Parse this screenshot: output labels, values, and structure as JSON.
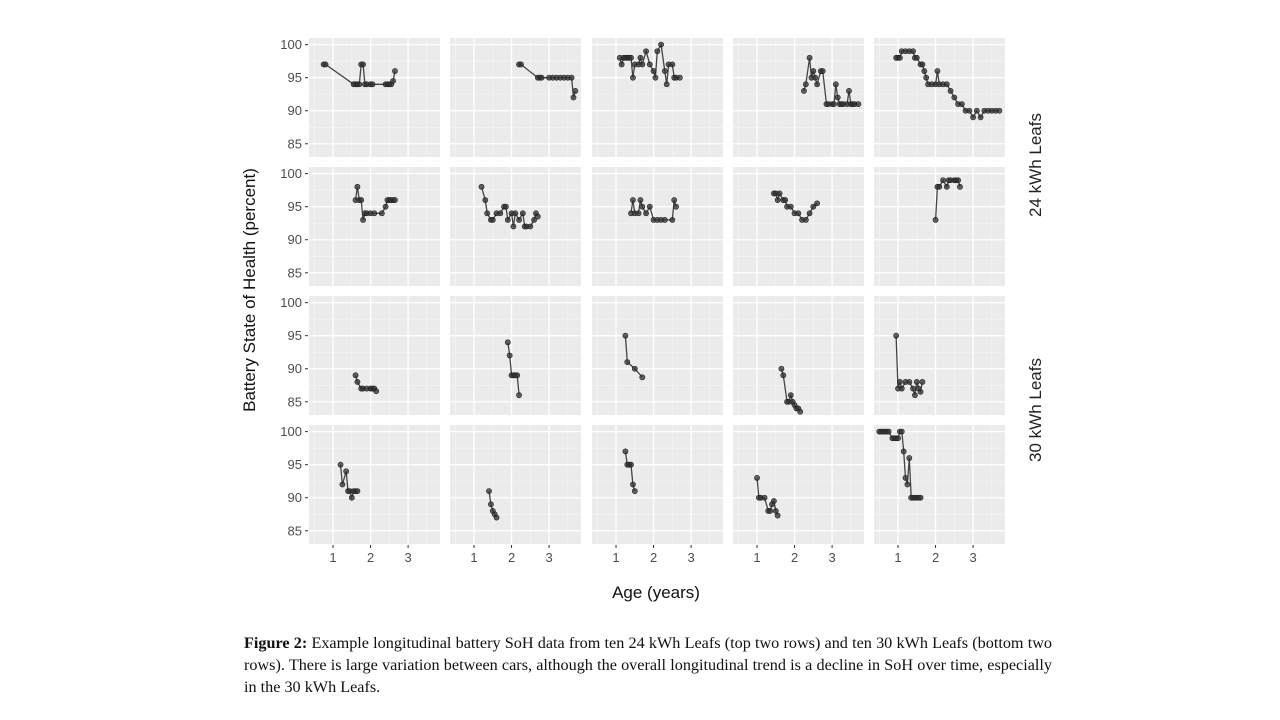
{
  "chart_data": {
    "type": "line",
    "layout": "facet_grid 4 rows x 5 columns",
    "xlabel": "Age (years)",
    "ylabel": "Battery State of Health (percent)",
    "x_ticks": [
      1,
      2,
      3
    ],
    "y_ticks": [
      85,
      90,
      95,
      100
    ],
    "xlim": [
      0.36,
      3.85
    ],
    "ylim": [
      83,
      101
    ],
    "grid": true,
    "panel_background": "#ebebeb",
    "point_color": "#333333",
    "line_color": "#444444",
    "row_strips": [
      {
        "label": "24 kWh Leafs",
        "rows": [
          0,
          1
        ]
      },
      {
        "label": "30 kWh Leafs",
        "rows": [
          2,
          3
        ]
      }
    ],
    "panels": [
      [
        {
          "x": [
            0.75,
            0.8,
            1.55,
            1.6,
            1.65,
            1.7,
            1.75,
            1.8,
            1.85,
            1.9,
            2.0,
            2.05,
            2.4,
            2.45,
            2.5,
            2.55,
            2.6,
            2.65
          ],
          "y": [
            97,
            97,
            94,
            94,
            94,
            94,
            97,
            97,
            94,
            94,
            94,
            94,
            94,
            94,
            94,
            94,
            94.5,
            96
          ]
        },
        {
          "x": [
            2.2,
            2.25,
            2.7,
            2.75,
            2.8,
            3.0,
            3.1,
            3.2,
            3.3,
            3.4,
            3.5,
            3.6,
            3.65,
            3.7
          ],
          "y": [
            97,
            97,
            95,
            95,
            95,
            95,
            95,
            95,
            95,
            95,
            95,
            95,
            92,
            93
          ]
        },
        {
          "x": [
            1.1,
            1.15,
            1.2,
            1.25,
            1.3,
            1.35,
            1.4,
            1.45,
            1.5,
            1.6,
            1.65,
            1.7,
            1.8,
            1.9,
            2.0,
            2.05,
            2.1,
            2.2,
            2.3,
            2.35,
            2.4,
            2.5,
            2.55,
            2.6,
            2.7
          ],
          "y": [
            98,
            97,
            98,
            98,
            98,
            98,
            98,
            95,
            97,
            97,
            98,
            97,
            99,
            97,
            96,
            95,
            99,
            100,
            96,
            94,
            97,
            97,
            95,
            95,
            95
          ]
        },
        {
          "x": [
            2.25,
            2.3,
            2.4,
            2.45,
            2.5,
            2.55,
            2.6,
            2.7,
            2.75,
            2.85,
            2.9,
            3.0,
            3.05,
            3.1,
            3.15,
            3.2,
            3.25,
            3.3,
            3.4,
            3.45,
            3.5,
            3.55,
            3.6,
            3.7
          ],
          "y": [
            93,
            94,
            98,
            95,
            96,
            95,
            94,
            96,
            96,
            91,
            91,
            91,
            91,
            94,
            92,
            91,
            91,
            91,
            91,
            93,
            91,
            91,
            91,
            91
          ]
        },
        {
          "x": [
            0.95,
            1.0,
            1.05,
            1.1,
            1.2,
            1.3,
            1.4,
            1.45,
            1.5,
            1.6,
            1.65,
            1.7,
            1.75,
            1.8,
            1.9,
            2.0,
            2.05,
            2.1,
            2.2,
            2.3,
            2.4,
            2.5,
            2.6,
            2.7,
            2.8,
            2.9,
            3.0,
            3.1,
            3.2,
            3.3,
            3.4,
            3.5,
            3.6,
            3.7
          ],
          "y": [
            98,
            98,
            98,
            99,
            99,
            99,
            99,
            98,
            98,
            97,
            97,
            96,
            95,
            94,
            94,
            94,
            96,
            94,
            94,
            94,
            93,
            92,
            91,
            91,
            90,
            90,
            89,
            90,
            89,
            90,
            90,
            90,
            90,
            90
          ]
        }
      ],
      [
        {
          "x": [
            1.6,
            1.65,
            1.7,
            1.75,
            1.8,
            1.85,
            1.9,
            2.0,
            2.1,
            2.3,
            2.4,
            2.45,
            2.5,
            2.55,
            2.6,
            2.65
          ],
          "y": [
            96,
            98,
            96,
            96,
            93,
            94,
            94,
            94,
            94,
            94,
            95,
            96,
            96,
            96,
            96,
            96
          ]
        },
        {
          "x": [
            1.2,
            1.3,
            1.35,
            1.45,
            1.5,
            1.6,
            1.7,
            1.8,
            1.85,
            1.9,
            2.0,
            2.05,
            2.1,
            2.2,
            2.3,
            2.35,
            2.4,
            2.5,
            2.6,
            2.65,
            2.7
          ],
          "y": [
            98,
            96,
            94,
            93,
            93,
            94,
            94,
            95,
            95,
            93,
            94,
            92,
            94,
            93,
            94,
            92,
            92,
            92,
            93,
            94,
            93.5
          ]
        },
        {
          "x": [
            1.4,
            1.45,
            1.5,
            1.6,
            1.65,
            1.7,
            1.8,
            1.9,
            2.0,
            2.1,
            2.2,
            2.3,
            2.5,
            2.55,
            2.6
          ],
          "y": [
            94,
            96,
            94,
            94,
            96,
            95,
            94,
            95,
            93,
            93,
            93,
            93,
            93,
            96,
            95
          ]
        },
        {
          "x": [
            1.45,
            1.5,
            1.55,
            1.6,
            1.7,
            1.75,
            1.8,
            1.9,
            2.0,
            2.1,
            2.2,
            2.3,
            2.4,
            2.5,
            2.6
          ],
          "y": [
            97,
            97,
            96,
            97,
            96,
            96,
            95,
            95,
            94,
            94,
            93,
            93,
            94,
            95,
            95.5
          ]
        },
        {
          "x": [
            2.0,
            2.05,
            2.1,
            2.2,
            2.3,
            2.35,
            2.4,
            2.5,
            2.55,
            2.6,
            2.65
          ],
          "y": [
            93,
            98,
            98,
            99,
            98,
            99,
            99,
            99,
            99,
            99,
            98
          ]
        }
      ],
      [
        {
          "x": [
            1.6,
            1.65,
            1.75,
            1.8,
            1.9,
            2.0,
            2.05,
            2.1,
            2.15
          ],
          "y": [
            89,
            88,
            87,
            87,
            87,
            87,
            87,
            87,
            86.6
          ]
        },
        {
          "x": [
            1.9,
            1.95,
            2.0,
            2.05,
            2.1,
            2.15,
            2.2
          ],
          "y": [
            94,
            92,
            89,
            89,
            89,
            89,
            86
          ]
        },
        {
          "x": [
            1.25,
            1.3,
            1.5,
            1.7
          ],
          "y": [
            95,
            91,
            90,
            88.7
          ]
        },
        {
          "x": [
            1.65,
            1.7,
            1.8,
            1.85,
            1.9,
            1.95,
            2.0,
            2.05,
            2.1,
            2.15
          ],
          "y": [
            90,
            89,
            85,
            85,
            86,
            85,
            84.5,
            84,
            84,
            83.5
          ]
        },
        {
          "x": [
            0.95,
            1.0,
            1.05,
            1.1,
            1.2,
            1.3,
            1.4,
            1.45,
            1.5,
            1.55,
            1.6,
            1.65
          ],
          "y": [
            95,
            87,
            88,
            87,
            88,
            88,
            87,
            86,
            88,
            87,
            86.5,
            88
          ]
        }
      ],
      [
        {
          "x": [
            1.2,
            1.25,
            1.35,
            1.4,
            1.45,
            1.5,
            1.55,
            1.6,
            1.65
          ],
          "y": [
            95,
            92,
            94,
            91,
            91,
            90,
            91,
            91,
            91
          ]
        },
        {
          "x": [
            1.4,
            1.45,
            1.5,
            1.55,
            1.6
          ],
          "y": [
            91,
            89,
            88,
            87.5,
            87
          ]
        },
        {
          "x": [
            1.25,
            1.3,
            1.35,
            1.4,
            1.45,
            1.5
          ],
          "y": [
            97,
            95,
            95,
            95,
            92,
            91
          ]
        },
        {
          "x": [
            1.0,
            1.05,
            1.1,
            1.2,
            1.3,
            1.35,
            1.4,
            1.45,
            1.5,
            1.55
          ],
          "y": [
            93,
            90,
            90,
            90,
            88,
            88,
            89,
            89.5,
            88,
            87.3
          ]
        },
        {
          "x": [
            0.5,
            0.55,
            0.6,
            0.65,
            0.7,
            0.75,
            0.85,
            0.9,
            0.95,
            1.0,
            1.05,
            1.1,
            1.15,
            1.2,
            1.25,
            1.3,
            1.35,
            1.4,
            1.45,
            1.5,
            1.55,
            1.6
          ],
          "y": [
            100,
            100,
            100,
            100,
            100,
            100,
            99,
            99,
            99,
            99,
            100,
            100,
            97,
            93,
            92,
            96,
            90,
            90,
            90,
            90,
            90,
            90
          ]
        }
      ]
    ]
  },
  "axes": {
    "xlabel": "Age (years)",
    "ylabel": "Battery State of Health (percent)",
    "strip_top": "24 kWh Leafs",
    "strip_bottom": "30 kWh Leafs"
  },
  "caption": {
    "label": "Figure 2:",
    "text": " Example longitudinal battery SoH data from ten 24 kWh Leafs (top two rows) and ten 30 kWh Leafs (bottom two rows).  There is large variation between cars, although the overall longitudinal trend is a decline in SoH over time, especially in the 30 kWh Leafs."
  }
}
